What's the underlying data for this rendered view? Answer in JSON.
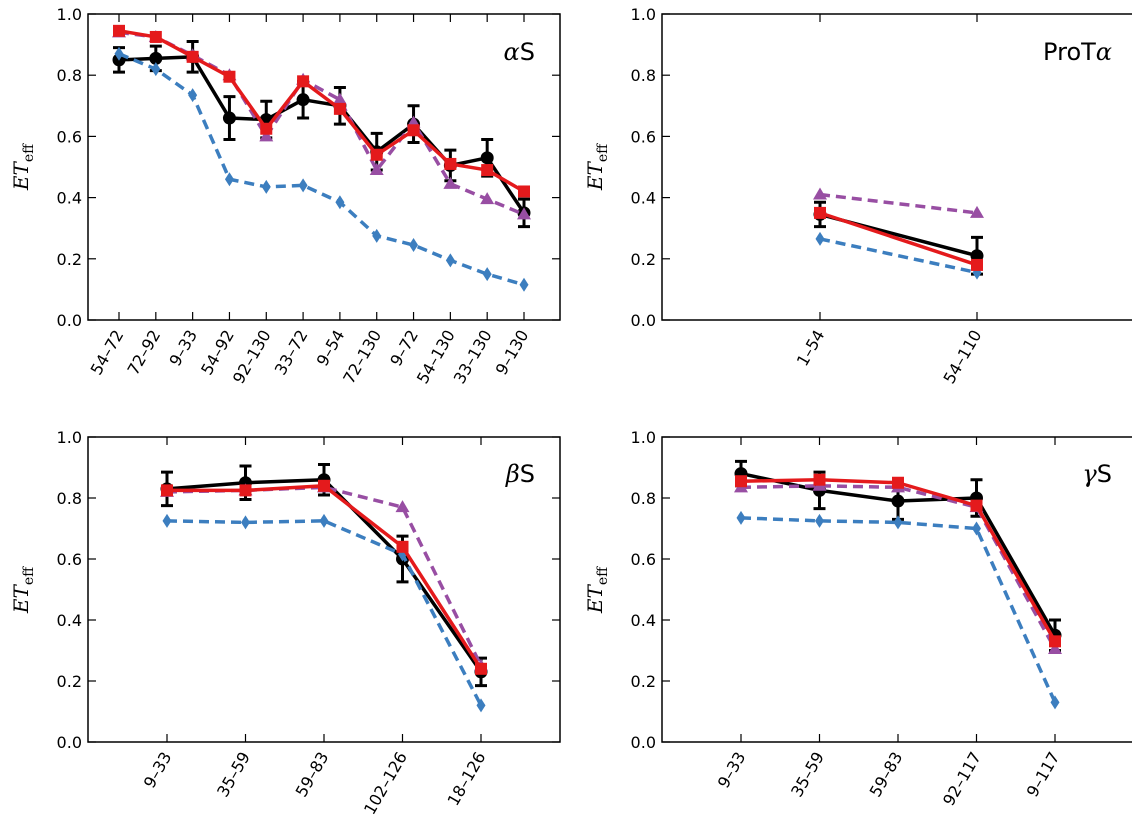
{
  "colors": {
    "black": "#000000",
    "blue": "#3c7ebf",
    "purple": "#984ea3",
    "red": "#e41a1c"
  },
  "y_tick_labels": [
    "0.0",
    "0.2",
    "0.4",
    "0.6",
    "0.8",
    "1.0"
  ],
  "chart_data": [
    {
      "type": "line",
      "panel": "top-left",
      "label_greek": "α",
      "label_text": "S",
      "ylabel_main": "ET",
      "ylabel_sub": "eff",
      "ylim": [
        0,
        1
      ],
      "categories": [
        "54–72",
        "72–92",
        "9–33",
        "54–92",
        "92–130",
        "33–72",
        "9–54",
        "72–130",
        "9–72",
        "54–130",
        "33–130",
        "9–130"
      ],
      "series": [
        {
          "style": "solid",
          "color": "black",
          "marker": "circle",
          "values": [
            0.85,
            0.855,
            0.86,
            0.66,
            0.655,
            0.72,
            0.7,
            0.55,
            0.64,
            0.505,
            0.53,
            0.35
          ],
          "errors": [
            0.04,
            0.04,
            0.05,
            0.07,
            0.06,
            0.06,
            0.06,
            0.06,
            0.06,
            0.05,
            0.06,
            0.045
          ]
        },
        {
          "style": "dashed",
          "color": "blue",
          "marker": "diamond",
          "values": [
            0.87,
            0.82,
            0.735,
            0.46,
            0.435,
            0.44,
            0.385,
            0.275,
            0.245,
            0.195,
            0.15,
            0.115
          ]
        },
        {
          "style": "dashed",
          "color": "purple",
          "marker": "triangle",
          "values": [
            0.94,
            0.925,
            0.865,
            0.8,
            0.6,
            0.785,
            0.72,
            0.49,
            0.645,
            0.445,
            0.395,
            0.345
          ]
        },
        {
          "style": "solid",
          "color": "red",
          "marker": "square",
          "values": [
            0.945,
            0.925,
            0.86,
            0.795,
            0.625,
            0.78,
            0.69,
            0.54,
            0.62,
            0.51,
            0.49,
            0.42
          ]
        }
      ]
    },
    {
      "type": "line",
      "panel": "top-right",
      "label_greek": "α",
      "label_text": "ProT",
      "ylabel_main": "ET",
      "ylabel_sub": "eff",
      "ylim": [
        0,
        1
      ],
      "categories": [
        "1–54",
        "54–110"
      ],
      "series": [
        {
          "style": "solid",
          "color": "black",
          "marker": "circle",
          "values": [
            0.345,
            0.21
          ],
          "errors": [
            0.04,
            0.06
          ]
        },
        {
          "style": "dashed",
          "color": "blue",
          "marker": "diamond",
          "values": [
            0.265,
            0.155
          ]
        },
        {
          "style": "dashed",
          "color": "purple",
          "marker": "triangle",
          "values": [
            0.41,
            0.35
          ]
        },
        {
          "style": "solid",
          "color": "red",
          "marker": "square",
          "values": [
            0.35,
            0.18
          ]
        }
      ]
    },
    {
      "type": "line",
      "panel": "bottom-left",
      "label_greek": "β",
      "label_text": "S",
      "ylabel_main": "ET",
      "ylabel_sub": "eff",
      "ylim": [
        0,
        1
      ],
      "categories": [
        "9–33",
        "35–59",
        "59–83",
        "102–126",
        "18–126"
      ],
      "series": [
        {
          "style": "solid",
          "color": "black",
          "marker": "circle",
          "values": [
            0.83,
            0.85,
            0.86,
            0.6,
            0.23
          ],
          "errors": [
            0.055,
            0.055,
            0.05,
            0.075,
            0.045
          ]
        },
        {
          "style": "dashed",
          "color": "blue",
          "marker": "diamond",
          "values": [
            0.725,
            0.72,
            0.725,
            0.615,
            0.12
          ]
        },
        {
          "style": "dashed",
          "color": "purple",
          "marker": "triangle",
          "values": [
            0.82,
            0.825,
            0.835,
            0.77,
            0.25
          ]
        },
        {
          "style": "solid",
          "color": "red",
          "marker": "square",
          "values": [
            0.825,
            0.825,
            0.84,
            0.64,
            0.24
          ]
        }
      ]
    },
    {
      "type": "line",
      "panel": "bottom-right",
      "label_greek": "γ",
      "label_text": "S",
      "ylabel_main": "ET",
      "ylabel_sub": "eff",
      "ylim": [
        0,
        1
      ],
      "categories": [
        "9–33",
        "35–59",
        "59–83",
        "92–117",
        "9–117"
      ],
      "series": [
        {
          "style": "solid",
          "color": "black",
          "marker": "circle",
          "values": [
            0.88,
            0.825,
            0.79,
            0.8,
            0.35
          ],
          "errors": [
            0.04,
            0.06,
            0.06,
            0.06,
            0.05
          ]
        },
        {
          "style": "dashed",
          "color": "blue",
          "marker": "diamond",
          "values": [
            0.735,
            0.725,
            0.72,
            0.7,
            0.13
          ]
        },
        {
          "style": "dashed",
          "color": "purple",
          "marker": "triangle",
          "values": [
            0.835,
            0.84,
            0.835,
            0.77,
            0.305
          ]
        },
        {
          "style": "solid",
          "color": "red",
          "marker": "square",
          "values": [
            0.855,
            0.86,
            0.85,
            0.775,
            0.33
          ]
        }
      ]
    }
  ]
}
